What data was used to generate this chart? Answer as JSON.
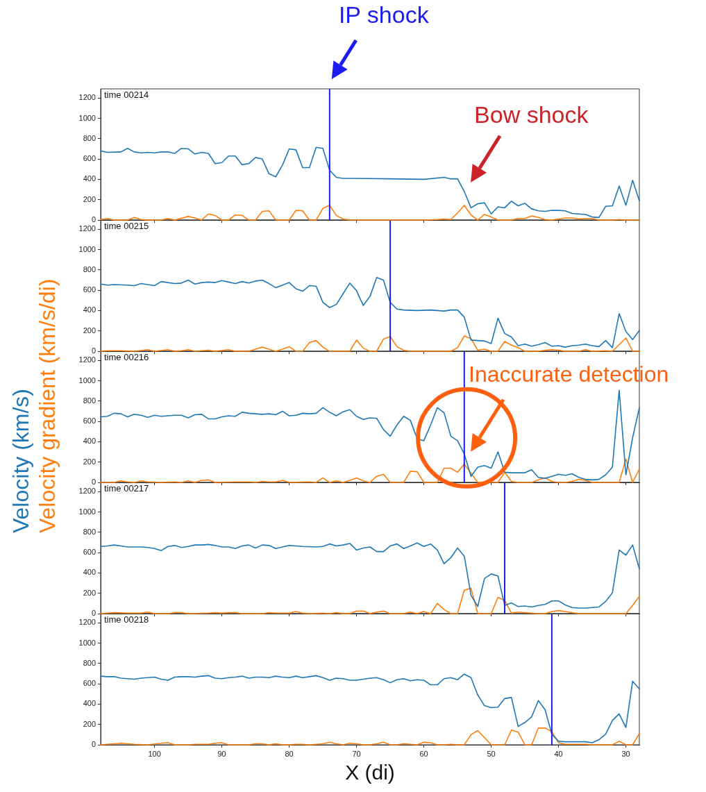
{
  "chart_data": [
    {
      "type": "line",
      "tick_labels": "y",
      "xlim": [
        108,
        28
      ],
      "ylim": [
        0,
        1290
      ],
      "xticks": [
        100,
        90,
        80,
        70,
        60,
        50,
        40,
        30
      ],
      "yticks": [
        0,
        200,
        400,
        600,
        800,
        1000,
        1200
      ],
      "ref_lines": [
        {
          "axis": "x",
          "value": 74,
          "color": "#1c1cf0"
        }
      ],
      "annotations": [
        "time 00214",
        "IP shock",
        "Bow shock"
      ],
      "series": [
        {
          "color": "#1f77b4",
          "x": [
            108,
            107,
            105,
            104,
            103,
            102,
            101,
            100,
            99,
            98,
            97,
            96,
            95,
            94,
            93,
            92,
            91,
            90,
            89,
            88,
            87,
            86,
            85,
            84,
            83,
            82,
            81,
            80,
            79,
            78,
            77,
            76,
            75,
            74,
            73,
            72,
            70,
            65,
            60,
            57,
            56,
            55,
            54,
            53,
            52,
            51,
            50,
            49,
            48,
            47,
            46,
            45,
            44,
            43,
            42,
            41,
            40,
            39,
            38,
            37,
            36,
            35,
            34,
            33,
            32,
            31,
            30,
            29,
            28
          ],
          "values": [
            680,
            665,
            670,
            705,
            670,
            660,
            665,
            660,
            670,
            670,
            655,
            705,
            700,
            650,
            665,
            655,
            555,
            565,
            630,
            630,
            545,
            555,
            615,
            600,
            455,
            425,
            540,
            700,
            690,
            515,
            515,
            715,
            705,
            490,
            420,
            410,
            410,
            405,
            400,
            420,
            405,
            405,
            280,
            120,
            160,
            170,
            60,
            130,
            120,
            185,
            140,
            165,
            110,
            90,
            85,
            95,
            95,
            90,
            65,
            60,
            55,
            30,
            25,
            135,
            140,
            335,
            145,
            390,
            190
          ]
        },
        {
          "color": "#ff7f0e",
          "x": [
            108,
            107,
            106,
            104,
            103,
            102,
            101,
            99,
            98,
            97,
            95,
            94,
            93,
            92,
            91,
            90,
            89,
            88,
            87,
            86,
            85,
            84,
            83,
            82,
            80,
            79,
            78,
            77,
            76,
            75,
            74,
            73,
            72,
            71,
            60,
            58,
            57,
            56,
            55,
            54,
            53,
            52,
            51,
            50,
            49,
            47,
            46,
            45,
            44,
            43,
            42,
            41,
            40,
            39,
            38,
            37,
            36,
            35,
            34,
            32,
            31,
            30,
            28
          ],
          "values": [
            5,
            15,
            0,
            0,
            25,
            5,
            0,
            0,
            15,
            0,
            35,
            20,
            0,
            60,
            45,
            0,
            0,
            50,
            45,
            0,
            0,
            85,
            90,
            0,
            0,
            95,
            90,
            0,
            0,
            115,
            145,
            45,
            10,
            0,
            0,
            5,
            10,
            5,
            70,
            145,
            50,
            0,
            55,
            30,
            0,
            0,
            15,
            15,
            40,
            25,
            5,
            0,
            10,
            20,
            20,
            10,
            15,
            15,
            0,
            0,
            5,
            0,
            0
          ]
        }
      ]
    },
    {
      "type": "line",
      "tick_labels": "y",
      "xlim": [
        108,
        28
      ],
      "ylim": [
        0,
        1290
      ],
      "xticks": [
        100,
        90,
        80,
        70,
        60,
        50,
        40,
        30
      ],
      "yticks": [
        0,
        200,
        400,
        600,
        800,
        1000,
        1200
      ],
      "ref_lines": [
        {
          "axis": "x",
          "value": 65,
          "color": "#1c1cf0"
        }
      ],
      "annotations": [
        "time 00215"
      ],
      "series": [
        {
          "color": "#1f77b4",
          "x": [
            108,
            107,
            106,
            104,
            103,
            102,
            101,
            100,
            99,
            98,
            97,
            96,
            95,
            94,
            93,
            92,
            91,
            90,
            89,
            88,
            87,
            86,
            85,
            84,
            83,
            82,
            81,
            80,
            79,
            78,
            77,
            76,
            75,
            74,
            73,
            72,
            71,
            70,
            69,
            68,
            67,
            66,
            65,
            64,
            63,
            61,
            59,
            57,
            56,
            55,
            54,
            53,
            52,
            51,
            50,
            49,
            48,
            47,
            46,
            45,
            44,
            43,
            42,
            41,
            40,
            39,
            38,
            37,
            36,
            35,
            34,
            33,
            32,
            31,
            30,
            29,
            28
          ],
          "values": [
            660,
            650,
            655,
            650,
            645,
            665,
            655,
            645,
            685,
            675,
            665,
            670,
            700,
            660,
            675,
            680,
            675,
            695,
            680,
            665,
            685,
            670,
            690,
            700,
            665,
            625,
            650,
            675,
            615,
            590,
            645,
            640,
            480,
            430,
            460,
            565,
            670,
            595,
            450,
            540,
            725,
            700,
            480,
            415,
            405,
            400,
            405,
            395,
            405,
            405,
            335,
            110,
            105,
            100,
            75,
            325,
            175,
            140,
            55,
            70,
            50,
            65,
            85,
            50,
            55,
            40,
            55,
            60,
            70,
            55,
            45,
            105,
            35,
            370,
            195,
            115,
            205
          ]
        },
        {
          "color": "#ff7f0e",
          "x": [
            108,
            107,
            105,
            103,
            101,
            100,
            98,
            97,
            96,
            95,
            94,
            92,
            91,
            89,
            88,
            86,
            85,
            84,
            83,
            82,
            81,
            80,
            79,
            78,
            77,
            76,
            75,
            74,
            71,
            70,
            69,
            68,
            67,
            66,
            65,
            64,
            63,
            62,
            56,
            55,
            54,
            53,
            52,
            51,
            50,
            49,
            48,
            47,
            46,
            45,
            43,
            42,
            41,
            40,
            39,
            37,
            36,
            35,
            33,
            32,
            30,
            29,
            28
          ],
          "values": [
            0,
            5,
            5,
            0,
            15,
            0,
            15,
            0,
            5,
            15,
            0,
            10,
            0,
            15,
            0,
            0,
            20,
            40,
            20,
            0,
            20,
            45,
            0,
            0,
            85,
            105,
            40,
            0,
            0,
            110,
            30,
            0,
            0,
            120,
            145,
            45,
            10,
            0,
            0,
            35,
            150,
            125,
            10,
            20,
            0,
            0,
            95,
            60,
            35,
            0,
            0,
            10,
            15,
            10,
            0,
            0,
            15,
            0,
            5,
            0,
            130,
            0,
            0
          ]
        }
      ]
    },
    {
      "type": "line",
      "tick_labels": "y",
      "xlim": [
        108,
        28
      ],
      "ylim": [
        0,
        1290
      ],
      "xticks": [
        100,
        90,
        80,
        70,
        60,
        50,
        40,
        30
      ],
      "yticks": [
        0,
        200,
        400,
        600,
        800,
        1000,
        1200
      ],
      "ref_lines": [
        {
          "axis": "x",
          "value": 54,
          "color": "#1c1cf0"
        }
      ],
      "annotations": [
        "time 00216",
        "Inaccurate detection"
      ],
      "series": [
        {
          "name": "Velocity (km/s)",
          "color": "#1f77b4",
          "x": [
            108,
            107,
            106,
            105,
            104,
            103,
            102,
            101,
            100,
            99,
            98,
            97,
            96,
            95,
            94,
            93,
            92,
            91,
            90,
            89,
            88,
            87,
            86,
            85,
            84,
            83,
            82,
            81,
            80,
            79,
            78,
            77,
            76,
            75,
            74,
            73,
            72,
            71,
            70,
            69,
            68,
            67,
            66,
            65,
            64,
            63,
            62,
            61,
            60,
            59,
            58,
            57,
            56,
            55,
            54,
            53,
            52,
            51,
            50,
            49,
            48,
            47,
            46,
            45,
            44,
            43,
            42,
            41,
            40,
            39,
            38,
            37,
            36,
            35,
            34,
            33,
            32,
            31,
            30,
            29,
            28
          ],
          "values": [
            645,
            650,
            680,
            675,
            645,
            670,
            660,
            640,
            660,
            650,
            655,
            660,
            660,
            635,
            665,
            670,
            625,
            625,
            645,
            655,
            650,
            690,
            680,
            675,
            670,
            675,
            665,
            700,
            655,
            660,
            680,
            675,
            680,
            735,
            690,
            655,
            695,
            715,
            650,
            620,
            635,
            630,
            520,
            455,
            565,
            650,
            610,
            430,
            410,
            565,
            735,
            685,
            455,
            410,
            280,
            60,
            150,
            165,
            140,
            300,
            100,
            95,
            95,
            95,
            125,
            50,
            40,
            60,
            80,
            70,
            85,
            50,
            30,
            25,
            30,
            75,
            150,
            905,
            75,
            440,
            735
          ]
        },
        {
          "name": "Velocity gradient (km/s/di)",
          "color": "#ff7f0e",
          "x": [
            108,
            106,
            105,
            104,
            103,
            102,
            101,
            99,
            97,
            96,
            95,
            94,
            93,
            92,
            91,
            88,
            86,
            85,
            84,
            83,
            82,
            81,
            80,
            77,
            76,
            75,
            74,
            73,
            72,
            71,
            70,
            69,
            68,
            67,
            66,
            65,
            63,
            62,
            61,
            60,
            59,
            58,
            57,
            56,
            55,
            54,
            53,
            52,
            51,
            49,
            48,
            47,
            46,
            44,
            43,
            42,
            41,
            40,
            39,
            38,
            37,
            36,
            35,
            34,
            31,
            30,
            29,
            28
          ],
          "values": [
            0,
            0,
            15,
            5,
            0,
            15,
            5,
            0,
            5,
            0,
            15,
            0,
            20,
            25,
            0,
            5,
            5,
            0,
            10,
            5,
            5,
            20,
            0,
            5,
            0,
            45,
            0,
            15,
            0,
            20,
            45,
            15,
            0,
            60,
            80,
            0,
            0,
            110,
            105,
            0,
            0,
            0,
            140,
            140,
            100,
            180,
            90,
            0,
            5,
            0,
            100,
            10,
            0,
            0,
            25,
            45,
            10,
            0,
            0,
            10,
            30,
            20,
            0,
            0,
            0,
            230,
            0,
            130
          ]
        }
      ]
    },
    {
      "type": "line",
      "tick_labels": "y",
      "xlim": [
        108,
        28
      ],
      "ylim": [
        0,
        1290
      ],
      "xticks": [
        100,
        90,
        80,
        70,
        60,
        50,
        40,
        30
      ],
      "yticks": [
        0,
        200,
        400,
        600,
        800,
        1000,
        1200
      ],
      "ref_lines": [
        {
          "axis": "x",
          "value": 48,
          "color": "#1c1cf0"
        }
      ],
      "annotations": [
        "time 00217"
      ],
      "series": [
        {
          "color": "#1f77b4",
          "x": [
            108,
            107,
            106,
            105,
            104,
            102,
            101,
            100,
            99,
            98,
            97,
            96,
            95,
            94,
            93,
            92,
            91,
            90,
            89,
            88,
            87,
            86,
            85,
            84,
            83,
            82,
            81,
            80,
            79,
            78,
            76,
            75,
            74,
            73,
            72,
            71,
            70,
            69,
            68,
            67,
            66,
            65,
            64,
            63,
            62,
            61,
            60,
            59,
            58,
            57,
            56,
            55,
            54,
            53,
            52,
            51,
            50,
            49,
            48,
            47,
            46,
            45,
            44,
            43,
            42,
            41,
            40,
            39,
            38,
            37,
            36,
            35,
            34,
            33,
            32,
            31,
            30,
            29,
            28
          ],
          "values": [
            660,
            665,
            675,
            665,
            655,
            655,
            650,
            640,
            620,
            660,
            670,
            650,
            660,
            675,
            675,
            680,
            670,
            655,
            655,
            640,
            665,
            675,
            645,
            675,
            670,
            640,
            655,
            670,
            665,
            660,
            655,
            660,
            685,
            665,
            675,
            690,
            625,
            645,
            655,
            610,
            610,
            665,
            685,
            640,
            665,
            695,
            660,
            685,
            625,
            490,
            550,
            645,
            565,
            180,
            70,
            345,
            390,
            370,
            80,
            105,
            70,
            75,
            65,
            80,
            90,
            125,
            125,
            85,
            60,
            55,
            55,
            60,
            65,
            120,
            205,
            625,
            575,
            675,
            440
          ]
        },
        {
          "color": "#ff7f0e",
          "x": [
            108,
            106,
            104,
            102,
            101,
            100,
            98,
            97,
            96,
            95,
            92,
            91,
            90,
            89,
            88,
            87,
            84,
            83,
            82,
            80,
            79,
            78,
            77,
            75,
            74,
            73,
            72,
            71,
            70,
            69,
            68,
            67,
            66,
            65,
            63,
            62,
            61,
            60,
            59,
            58,
            57,
            56,
            55,
            54,
            53,
            52,
            51,
            50,
            49,
            48,
            47,
            46,
            45,
            44,
            43,
            42,
            41,
            40,
            39,
            38,
            37,
            35,
            30,
            29,
            28
          ],
          "values": [
            0,
            10,
            5,
            5,
            15,
            0,
            0,
            10,
            10,
            0,
            5,
            10,
            5,
            10,
            10,
            0,
            0,
            10,
            5,
            5,
            20,
            5,
            0,
            5,
            0,
            10,
            0,
            0,
            25,
            25,
            0,
            15,
            25,
            0,
            0,
            15,
            0,
            20,
            0,
            100,
            40,
            0,
            0,
            230,
            250,
            0,
            0,
            0,
            160,
            130,
            5,
            15,
            10,
            5,
            0,
            0,
            20,
            30,
            20,
            10,
            0,
            0,
            0,
            80,
            170
          ]
        }
      ]
    },
    {
      "type": "line",
      "xlabel": "X (di)",
      "xlim": [
        108,
        28
      ],
      "ylim": [
        0,
        1290
      ],
      "xticks": [
        100,
        90,
        80,
        70,
        60,
        50,
        40,
        30
      ],
      "yticks": [
        0,
        200,
        400,
        600,
        800,
        1000,
        1200
      ],
      "ref_lines": [
        {
          "axis": "x",
          "value": 41,
          "color": "#1c1cf0"
        }
      ],
      "annotations": [
        "time 00218"
      ],
      "series": [
        {
          "color": "#1f77b4",
          "x": [
            108,
            107,
            106,
            105,
            104,
            103,
            102,
            101,
            100,
            99,
            98,
            97,
            96,
            95,
            94,
            93,
            92,
            91,
            90,
            89,
            88,
            87,
            86,
            85,
            84,
            83,
            82,
            81,
            80,
            79,
            78,
            77,
            76,
            75,
            74,
            73,
            72,
            71,
            70,
            69,
            68,
            67,
            66,
            65,
            64,
            63,
            62,
            61,
            60,
            59,
            58,
            57,
            56,
            55,
            54,
            53,
            52,
            51,
            50,
            49,
            48,
            47,
            46,
            45,
            44,
            43,
            42,
            41,
            40,
            39,
            38,
            37,
            36,
            35,
            34,
            33,
            32,
            31,
            30,
            29,
            28
          ],
          "values": [
            675,
            670,
            670,
            655,
            650,
            645,
            655,
            660,
            665,
            645,
            635,
            665,
            670,
            670,
            665,
            675,
            680,
            655,
            650,
            660,
            665,
            675,
            655,
            665,
            665,
            660,
            675,
            665,
            660,
            675,
            660,
            670,
            680,
            660,
            635,
            655,
            650,
            635,
            635,
            645,
            655,
            660,
            640,
            610,
            640,
            650,
            630,
            640,
            635,
            590,
            590,
            650,
            660,
            640,
            695,
            660,
            490,
            385,
            365,
            370,
            455,
            465,
            180,
            220,
            275,
            435,
            345,
            105,
            35,
            30,
            30,
            30,
            30,
            20,
            50,
            105,
            240,
            305,
            170,
            625,
            550
          ]
        },
        {
          "color": "#ff7f0e",
          "x": [
            108,
            106,
            105,
            104,
            103,
            101,
            99,
            98,
            97,
            95,
            94,
            93,
            92,
            91,
            90,
            89,
            86,
            85,
            84,
            83,
            82,
            81,
            80,
            79,
            78,
            77,
            75,
            74,
            73,
            72,
            71,
            70,
            69,
            68,
            67,
            66,
            65,
            64,
            63,
            62,
            61,
            60,
            59,
            58,
            57,
            56,
            55,
            54,
            53,
            52,
            51,
            50,
            48,
            47,
            46,
            45,
            44,
            43,
            42,
            41,
            40,
            39,
            38,
            36,
            35,
            34,
            32,
            31,
            30,
            29,
            28
          ],
          "values": [
            0,
            10,
            15,
            10,
            5,
            0,
            15,
            20,
            0,
            0,
            5,
            5,
            5,
            15,
            20,
            0,
            0,
            10,
            10,
            0,
            10,
            0,
            0,
            5,
            5,
            0,
            10,
            25,
            10,
            0,
            15,
            10,
            0,
            0,
            10,
            25,
            0,
            0,
            10,
            5,
            0,
            25,
            20,
            0,
            0,
            5,
            0,
            0,
            100,
            140,
            70,
            0,
            0,
            145,
            125,
            0,
            0,
            165,
            165,
            130,
            20,
            5,
            5,
            5,
            0,
            0,
            0,
            35,
            0,
            0,
            110
          ]
        }
      ]
    }
  ]
}
